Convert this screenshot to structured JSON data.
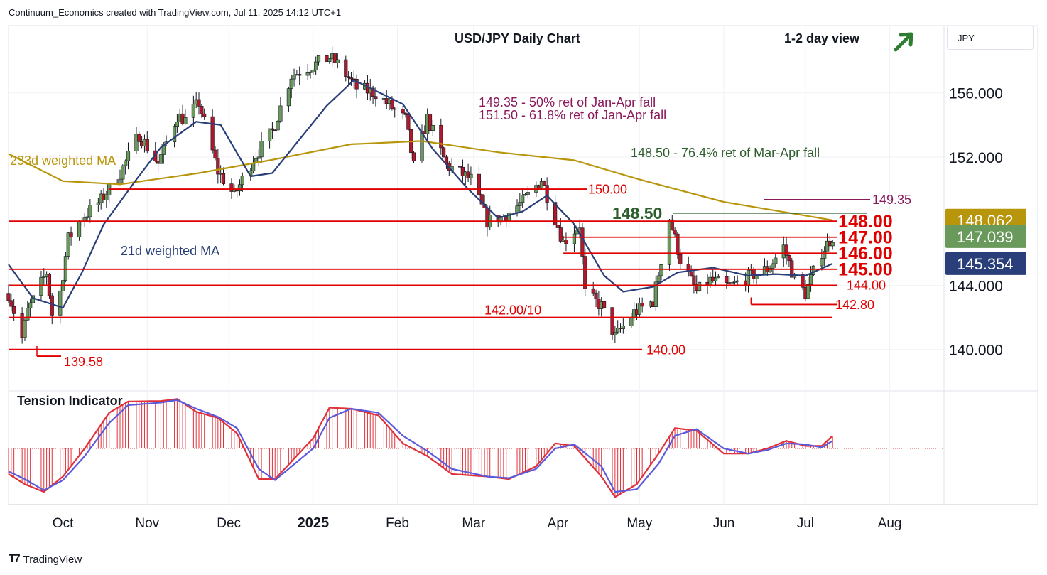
{
  "header": {
    "created_by": "Continuum_Economics created with TradingView.com, Jul 11, 2025 14:12 UTC+1"
  },
  "currency": "JPY",
  "footer": {
    "brand": "TradingView"
  },
  "colors": {
    "up": "#6a9a5b",
    "down": "#b0192b",
    "support": "#e00000",
    "ma233": "#b8960c",
    "ma21": "#2a3f7a",
    "green_level": "#2e5e2e",
    "purple_level": "#8b1a5c",
    "tension_red": "#e0303a",
    "tension_blue": "#5a5adc"
  },
  "chart_data": [
    {
      "type": "line",
      "title": "USD/JPY Daily Chart",
      "subtitle": "1-2 day view",
      "view_arrow": "up-right-arrow",
      "ylim": [
        137.5,
        160.2
      ],
      "y_ticks": [
        "156.000",
        "152.000",
        "144.000",
        "140.000"
      ],
      "x_ticks": [
        "Oct",
        "Nov",
        "Dec",
        "2025",
        "Feb",
        "Mar",
        "Apr",
        "May",
        "Jun",
        "Jul",
        "Aug"
      ],
      "price_tags": [
        {
          "label": "148.062",
          "value": 148.062,
          "color": "#b8960c"
        },
        {
          "label": "147.039",
          "value": 147.039,
          "color": "#6a9a5b"
        },
        {
          "label": "145.354",
          "value": 145.354,
          "color": "#2a3f7a"
        }
      ],
      "series": [
        {
          "name": "233d weighted MA",
          "points": [
            [
              "2024-09-11",
              152.2
            ],
            [
              "2024-10-01",
              150.5
            ],
            [
              "2024-10-22",
              150.3
            ],
            [
              "2024-11-20",
              151.0
            ],
            [
              "2024-12-16",
              151.8
            ],
            [
              "2025-01-15",
              152.8
            ],
            [
              "2025-02-10",
              153.0
            ],
            [
              "2025-03-10",
              152.3
            ],
            [
              "2025-04-07",
              151.8
            ],
            [
              "2025-05-01",
              150.6
            ],
            [
              "2025-06-01",
              149.2
            ],
            [
              "2025-07-11",
              148.06
            ]
          ]
        },
        {
          "name": "21d weighted MA",
          "points": [
            [
              "2024-09-11",
              145.3
            ],
            [
              "2024-09-20",
              143.2
            ],
            [
              "2024-10-01",
              142.6
            ],
            [
              "2024-10-08",
              144.8
            ],
            [
              "2024-10-16",
              147.8
            ],
            [
              "2024-10-28",
              150.6
            ],
            [
              "2024-11-06",
              152.6
            ],
            [
              "2024-11-19",
              154.2
            ],
            [
              "2024-11-28",
              154.0
            ],
            [
              "2024-12-09",
              150.8
            ],
            [
              "2024-12-17",
              151.0
            ],
            [
              "2025-01-06",
              155.2
            ],
            [
              "2025-01-16",
              156.8
            ],
            [
              "2025-02-03",
              155.3
            ],
            [
              "2025-02-14",
              152.5
            ],
            [
              "2025-02-27",
              150.0
            ],
            [
              "2025-03-10",
              148.2
            ],
            [
              "2025-03-19",
              148.6
            ],
            [
              "2025-03-28",
              149.6
            ],
            [
              "2025-04-07",
              147.8
            ],
            [
              "2025-04-18",
              144.6
            ],
            [
              "2025-04-25",
              143.6
            ],
            [
              "2025-05-06",
              143.9
            ],
            [
              "2025-05-15",
              144.8
            ],
            [
              "2025-05-28",
              145.1
            ],
            [
              "2025-06-10",
              144.6
            ],
            [
              "2025-06-20",
              144.7
            ],
            [
              "2025-07-01",
              144.6
            ],
            [
              "2025-07-11",
              145.35
            ]
          ]
        },
        {
          "name": "price_path",
          "points": [
            [
              "2024-09-11",
              143.5
            ],
            [
              "2024-09-16",
              140.7
            ],
            [
              "2024-09-18",
              142.4
            ],
            [
              "2024-09-25",
              144.8
            ],
            [
              "2024-09-27",
              142.2
            ],
            [
              "2024-09-30",
              143.6
            ],
            [
              "2024-10-03",
              146.9
            ],
            [
              "2024-10-08",
              148.2
            ],
            [
              "2024-10-15",
              149.3
            ],
            [
              "2024-10-22",
              151.0
            ],
            [
              "2024-10-29",
              153.4
            ],
            [
              "2024-11-05",
              151.6
            ],
            [
              "2024-11-12",
              154.6
            ],
            [
              "2024-11-15",
              154.3
            ],
            [
              "2024-11-20",
              155.4
            ],
            [
              "2024-11-27",
              151.1
            ],
            [
              "2024-12-03",
              149.6
            ],
            [
              "2024-12-10",
              151.9
            ],
            [
              "2024-12-17",
              153.6
            ],
            [
              "2024-12-24",
              157.1
            ],
            [
              "2025-01-07",
              158.2
            ],
            [
              "2025-01-10",
              157.8
            ],
            [
              "2025-01-17",
              156.3
            ],
            [
              "2025-01-24",
              156.0
            ],
            [
              "2025-02-04",
              154.3
            ],
            [
              "2025-02-07",
              151.4
            ],
            [
              "2025-02-12",
              154.4
            ],
            [
              "2025-02-19",
              151.5
            ],
            [
              "2025-02-28",
              150.6
            ],
            [
              "2025-03-06",
              148.0
            ],
            [
              "2025-03-12",
              148.3
            ],
            [
              "2025-03-19",
              149.2
            ],
            [
              "2025-03-26",
              150.6
            ],
            [
              "2025-04-03",
              146.7
            ],
            [
              "2025-04-09",
              147.8
            ],
            [
              "2025-04-11",
              143.5
            ],
            [
              "2025-04-17",
              142.7
            ],
            [
              "2025-04-22",
              140.8
            ],
            [
              "2025-04-29",
              142.3
            ],
            [
              "2025-05-06",
              143.0
            ],
            [
              "2025-05-12",
              148.2
            ],
            [
              "2025-05-16",
              145.6
            ],
            [
              "2025-05-22",
              143.6
            ],
            [
              "2025-05-27",
              144.3
            ],
            [
              "2025-06-03",
              143.9
            ],
            [
              "2025-06-11",
              144.6
            ],
            [
              "2025-06-17",
              145.0
            ],
            [
              "2025-06-23",
              146.4
            ],
            [
              "2025-06-27",
              144.4
            ],
            [
              "2025-07-01",
              143.5
            ],
            [
              "2025-07-07",
              146.1
            ],
            [
              "2025-07-11",
              147.04
            ]
          ]
        }
      ],
      "levels": [
        {
          "label": "148.00",
          "value": 148.0,
          "start": "2024-09-11",
          "style": "support-big"
        },
        {
          "label": "147.00",
          "value": 147.0,
          "start": "2025-04-03",
          "style": "support-big"
        },
        {
          "label": "146.00",
          "value": 146.0,
          "start": "2025-04-03",
          "style": "support-big"
        },
        {
          "label": "145.00",
          "value": 145.0,
          "start": "2024-09-11",
          "style": "support-big"
        },
        {
          "label": "144.00",
          "value": 144.0,
          "start": "2024-09-11",
          "style": "support"
        },
        {
          "label": "142.80",
          "value": 142.8,
          "start": "2025-06-11",
          "style": "support"
        },
        {
          "label": "142.00/10",
          "value": 142.0,
          "start": "2024-09-11",
          "style": "support-mid"
        },
        {
          "label": "140.00",
          "value": 140.0,
          "start": "2024-09-11",
          "style": "support-end"
        },
        {
          "label": "139.58",
          "value": 139.58,
          "start": "2024-09-11",
          "style": "support-low"
        },
        {
          "label": "150.00",
          "value": 150.0,
          "start": "2024-10-18",
          "style": "support-mid"
        },
        {
          "label": "148.50",
          "value": 148.5,
          "start": "2025-05-12",
          "style": "green"
        },
        {
          "label": "149.35",
          "value": 149.35,
          "start": "2025-06-01",
          "style": "purple"
        }
      ],
      "annotations": [
        {
          "text": "149.35 - 50% ret of Jan-Apr fall",
          "color": "#8b1a5c"
        },
        {
          "text": "151.50 - 61.8% ret of Jan-Apr fall",
          "color": "#8b1a5c"
        },
        {
          "text": "148.50 - 76.4% ret of Mar-Apr fall",
          "color": "#2e5e2e"
        },
        {
          "text": "233d weighted MA",
          "color": "#b8960c"
        },
        {
          "text": "21d weighted MA",
          "color": "#2a3f7a"
        }
      ]
    },
    {
      "type": "area",
      "title": "Tension Indicator",
      "ylim": [
        -1.1,
        1.1
      ],
      "series": [
        {
          "name": "tension_red",
          "points": [
            [
              "2024-09-11",
              -0.5
            ],
            [
              "2024-09-17",
              -0.7
            ],
            [
              "2024-09-24",
              -0.85
            ],
            [
              "2024-10-01",
              -0.55
            ],
            [
              "2024-10-09",
              0.0
            ],
            [
              "2024-10-18",
              0.7
            ],
            [
              "2024-10-25",
              0.92
            ],
            [
              "2024-11-06",
              0.93
            ],
            [
              "2024-11-12",
              0.97
            ],
            [
              "2024-11-19",
              0.72
            ],
            [
              "2024-11-27",
              0.6
            ],
            [
              "2024-12-04",
              0.3
            ],
            [
              "2024-12-12",
              -0.6
            ],
            [
              "2024-12-18",
              -0.6
            ],
            [
              "2025-01-01",
              0.2
            ],
            [
              "2025-01-07",
              0.8
            ],
            [
              "2025-01-15",
              0.78
            ],
            [
              "2025-01-25",
              0.65
            ],
            [
              "2025-02-03",
              0.1
            ],
            [
              "2025-02-12",
              -0.15
            ],
            [
              "2025-02-21",
              -0.5
            ],
            [
              "2025-03-06",
              -0.55
            ],
            [
              "2025-03-14",
              -0.6
            ],
            [
              "2025-03-24",
              -0.35
            ],
            [
              "2025-03-31",
              0.1
            ],
            [
              "2025-04-07",
              0.05
            ],
            [
              "2025-04-17",
              -0.55
            ],
            [
              "2025-04-22",
              -0.95
            ],
            [
              "2025-04-30",
              -0.7
            ],
            [
              "2025-05-08",
              -0.1
            ],
            [
              "2025-05-14",
              0.4
            ],
            [
              "2025-05-22",
              0.35
            ],
            [
              "2025-06-01",
              -0.1
            ],
            [
              "2025-06-10",
              -0.1
            ],
            [
              "2025-06-17",
              0.0
            ],
            [
              "2025-06-24",
              0.15
            ],
            [
              "2025-07-01",
              0.05
            ],
            [
              "2025-07-07",
              0.05
            ],
            [
              "2025-07-11",
              0.25
            ]
          ]
        },
        {
          "name": "tension_blue",
          "points": [
            [
              "2024-09-11",
              -0.45
            ],
            [
              "2024-09-17",
              -0.6
            ],
            [
              "2024-09-24",
              -0.82
            ],
            [
              "2024-10-01",
              -0.62
            ],
            [
              "2024-10-09",
              -0.15
            ],
            [
              "2024-10-18",
              0.5
            ],
            [
              "2024-10-25",
              0.85
            ],
            [
              "2024-11-06",
              0.9
            ],
            [
              "2024-11-12",
              0.95
            ],
            [
              "2024-11-19",
              0.78
            ],
            [
              "2024-11-27",
              0.62
            ],
            [
              "2024-12-04",
              0.4
            ],
            [
              "2024-12-12",
              -0.4
            ],
            [
              "2024-12-18",
              -0.62
            ],
            [
              "2025-01-01",
              0.0
            ],
            [
              "2025-01-07",
              0.6
            ],
            [
              "2025-01-15",
              0.78
            ],
            [
              "2025-01-25",
              0.7
            ],
            [
              "2025-02-03",
              0.25
            ],
            [
              "2025-02-12",
              -0.05
            ],
            [
              "2025-02-21",
              -0.4
            ],
            [
              "2025-03-06",
              -0.55
            ],
            [
              "2025-03-14",
              -0.58
            ],
            [
              "2025-03-24",
              -0.4
            ],
            [
              "2025-03-31",
              0.0
            ],
            [
              "2025-04-07",
              0.08
            ],
            [
              "2025-04-17",
              -0.35
            ],
            [
              "2025-04-22",
              -0.85
            ],
            [
              "2025-04-30",
              -0.8
            ],
            [
              "2025-05-08",
              -0.3
            ],
            [
              "2025-05-14",
              0.25
            ],
            [
              "2025-05-22",
              0.38
            ],
            [
              "2025-06-01",
              0.0
            ],
            [
              "2025-06-10",
              -0.1
            ],
            [
              "2025-06-17",
              -0.03
            ],
            [
              "2025-06-24",
              0.1
            ],
            [
              "2025-07-01",
              0.08
            ],
            [
              "2025-07-07",
              0.02
            ],
            [
              "2025-07-11",
              0.15
            ]
          ]
        }
      ]
    }
  ]
}
